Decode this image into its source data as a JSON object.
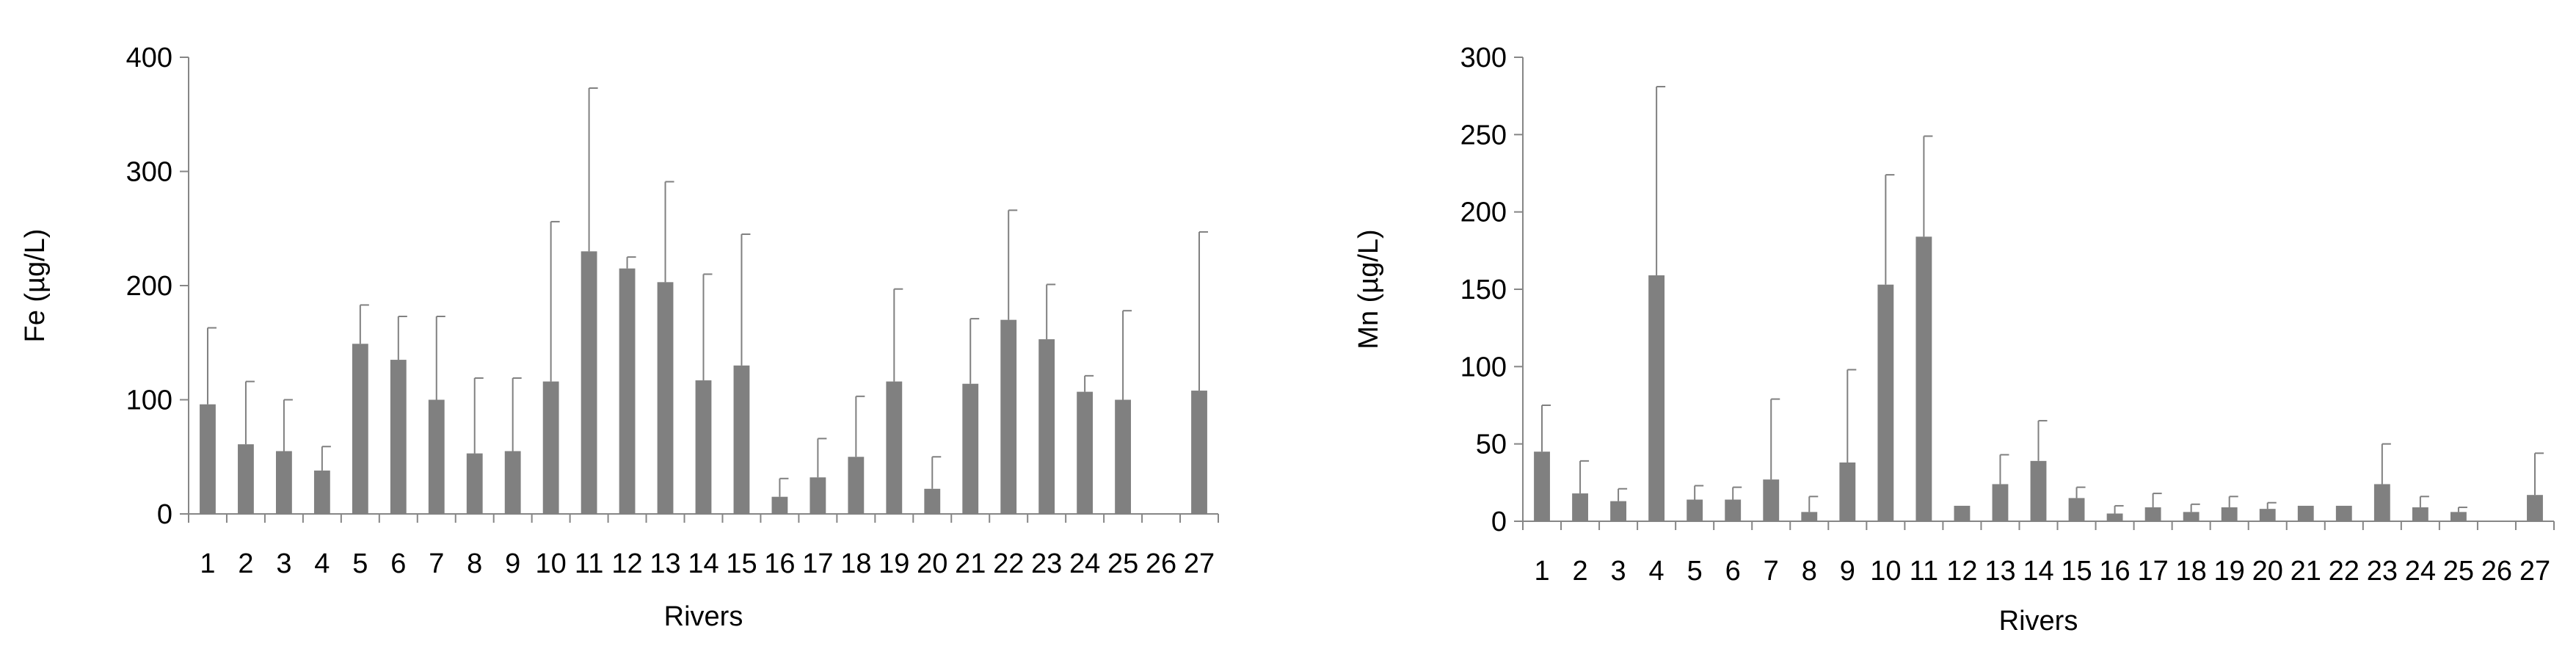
{
  "colors": {
    "bar": "#808080",
    "error_bar": "#808080",
    "axis": "#868686",
    "text": "#000000"
  },
  "chart_data": [
    {
      "type": "bar",
      "xlabel": "Rivers",
      "ylabel": "Fe (µg/L)",
      "ylim": [
        0,
        400
      ],
      "yticks": [
        "0",
        "100",
        "200",
        "300",
        "400"
      ],
      "grid": false,
      "legend": "none",
      "categories": [
        "1",
        "2",
        "3",
        "4",
        "5",
        "6",
        "7",
        "8",
        "9",
        "10",
        "11",
        "12",
        "13",
        "14",
        "15",
        "16",
        "17",
        "18",
        "19",
        "20",
        "21",
        "22",
        "23",
        "24",
        "25",
        "26",
        "27"
      ],
      "values": [
        96,
        61,
        55,
        38,
        149,
        135,
        100,
        53,
        55,
        116,
        230,
        215,
        203,
        117,
        130,
        15,
        32,
        50,
        116,
        22,
        114,
        170,
        153,
        107,
        100,
        0,
        108
      ],
      "error_upper": [
        163,
        116,
        100,
        59,
        183,
        173,
        173,
        119,
        119,
        256,
        373,
        225,
        291,
        210,
        245,
        31,
        66,
        103,
        197,
        50,
        171,
        266,
        201,
        121,
        178,
        null,
        247
      ]
    },
    {
      "type": "bar",
      "xlabel": "Rivers",
      "ylabel": "Mn (µg/L)",
      "ylim": [
        0,
        300
      ],
      "yticks": [
        "0",
        "50",
        "100",
        "150",
        "200",
        "250",
        "300"
      ],
      "grid": false,
      "legend": "none",
      "categories": [
        "1",
        "2",
        "3",
        "4",
        "5",
        "6",
        "7",
        "8",
        "9",
        "10",
        "11",
        "12",
        "13",
        "14",
        "15",
        "16",
        "17",
        "18",
        "19",
        "20",
        "21",
        "22",
        "23",
        "24",
        "25",
        "26",
        "27"
      ],
      "values": [
        45,
        18,
        13,
        159,
        14,
        14,
        27,
        6,
        38,
        153,
        184,
        10,
        24,
        39,
        15,
        5,
        9,
        6,
        9,
        8,
        10,
        10,
        24,
        9,
        6,
        0,
        17
      ],
      "error_upper": [
        75,
        39,
        21,
        281,
        23,
        22,
        79,
        16,
        98,
        224,
        249,
        10,
        43,
        65,
        22,
        10,
        18,
        11,
        16,
        12,
        10,
        10,
        50,
        16,
        9,
        null,
        44
      ]
    }
  ]
}
